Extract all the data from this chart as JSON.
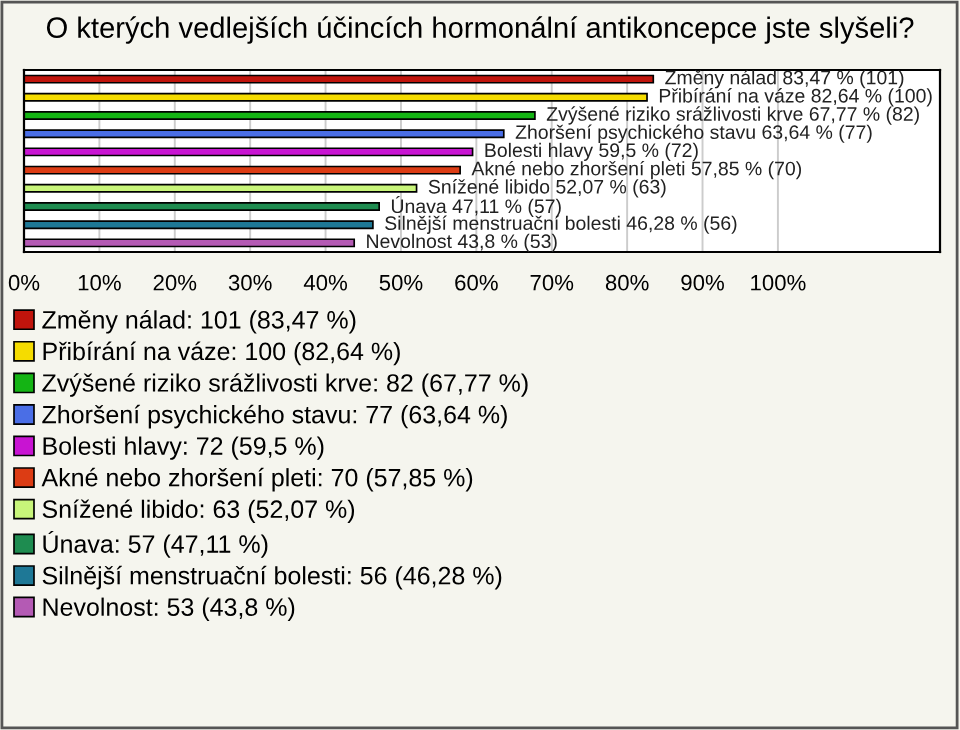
{
  "chart_data": {
    "type": "bar",
    "orientation": "horizontal",
    "title": "O kterých vedlejších účincích hormonální antikoncepce jste slyšeli?",
    "categories": [
      null,
      null,
      null,
      null,
      null,
      null,
      null,
      null,
      null,
      null
    ],
    "series": [
      {
        "name": "Změny nálad: 101 (83,47 %)",
        "color": "#c0140c",
        "values": [
          83.47,
          null,
          null,
          null,
          null,
          null,
          null,
          null,
          null,
          null
        ],
        "value_labels": [
          "Změny nálad 83,47 % (101)",
          null,
          null,
          null,
          null,
          null,
          null,
          null,
          null,
          null
        ]
      },
      {
        "name": "Přibírání na váze: 100 (82,64 %)",
        "color": "#f5dc00",
        "values": [
          null,
          82.64,
          null,
          null,
          null,
          null,
          null,
          null,
          null,
          null
        ],
        "value_labels": [
          null,
          "Přibírání na váze 82,64 % (100)",
          null,
          null,
          null,
          null,
          null,
          null,
          null,
          null
        ]
      },
      {
        "name": "Zvýšené riziko srážlivosti krve: 82 (67,77 %)",
        "color": "#14b414",
        "values": [
          null,
          null,
          67.77,
          null,
          null,
          null,
          null,
          null,
          null,
          null
        ],
        "value_labels": [
          null,
          null,
          "Zvýšené riziko srážlivosti krve 67,77 % (82)",
          null,
          null,
          null,
          null,
          null,
          null,
          null
        ]
      },
      {
        "name": "Zhoršení psychického stavu: 77 (63,64 %)",
        "color": "#4a6ee6",
        "values": [
          null,
          null,
          null,
          63.64,
          null,
          null,
          null,
          null,
          null,
          null
        ],
        "value_labels": [
          null,
          null,
          null,
          "Zhoršení psychického stavu 63,64 % (77)",
          null,
          null,
          null,
          null,
          null,
          null
        ]
      },
      {
        "name": "Bolesti hlavy: 72 (59,5 %)",
        "color": "#c814d2",
        "values": [
          null,
          null,
          null,
          null,
          59.5,
          null,
          null,
          null,
          null,
          null
        ],
        "value_labels": [
          null,
          null,
          null,
          null,
          "Bolesti hlavy 59,5 % (72)",
          null,
          null,
          null,
          null,
          null
        ]
      },
      {
        "name": "Akné nebo zhoršení pleti: 70 (57,85 %)",
        "color": "#dc3c14",
        "values": [
          null,
          null,
          null,
          null,
          null,
          57.85,
          null,
          null,
          null,
          null
        ],
        "value_labels": [
          null,
          null,
          null,
          null,
          null,
          "Akné nebo zhoršení pleti 57,85 % (70)",
          null,
          null,
          null,
          null
        ]
      },
      {
        "name": "Snížené libido: 63 (52,07 %)",
        "color": "#c8f57a",
        "values": [
          null,
          null,
          null,
          null,
          null,
          null,
          52.07,
          null,
          null,
          null
        ],
        "value_labels": [
          null,
          null,
          null,
          null,
          null,
          null,
          "Snížené libido 52,07 % (63)",
          null,
          null,
          null
        ]
      },
      {
        "name": "Únava: 57 (47,11 %)",
        "color": "#1e8c50",
        "values": [
          null,
          null,
          null,
          null,
          null,
          null,
          null,
          47.11,
          null,
          null
        ],
        "value_labels": [
          null,
          null,
          null,
          null,
          null,
          null,
          null,
          "Únava 47,11 % (57)",
          null,
          null
        ]
      },
      {
        "name": "Silnější menstruační bolesti: 56 (46,28 %)",
        "color": "#1e7896",
        "values": [
          null,
          null,
          null,
          null,
          null,
          null,
          null,
          null,
          46.28,
          null
        ],
        "value_labels": [
          null,
          null,
          null,
          null,
          null,
          null,
          null,
          null,
          "Silnější menstruační bolesti 46,28 % (56)",
          null
        ]
      },
      {
        "name": "Nevolnost: 53 (43,8 %)",
        "color": "#b45ab4",
        "values": [
          null,
          null,
          null,
          null,
          null,
          null,
          null,
          null,
          null,
          43.8
        ],
        "value_labels": [
          null,
          null,
          null,
          null,
          null,
          null,
          null,
          null,
          null,
          "Nevolnost 43,8 % (53)"
        ]
      }
    ],
    "xlim": [
      0,
      121.5
    ],
    "xticks": [
      {
        "value": 0,
        "label": "0%"
      },
      {
        "value": 10,
        "label": "10%"
      },
      {
        "value": 20,
        "label": "20%"
      },
      {
        "value": 30,
        "label": "30%"
      },
      {
        "value": 40,
        "label": "40%"
      },
      {
        "value": 50,
        "label": "50%"
      },
      {
        "value": 60,
        "label": "60%"
      },
      {
        "value": 70,
        "label": "70%"
      },
      {
        "value": 80,
        "label": "80%"
      },
      {
        "value": 90,
        "label": "90%"
      },
      {
        "value": 100,
        "label": "100%"
      }
    ],
    "grid": "x",
    "legend": "bottom",
    "tick_labels": "x"
  }
}
